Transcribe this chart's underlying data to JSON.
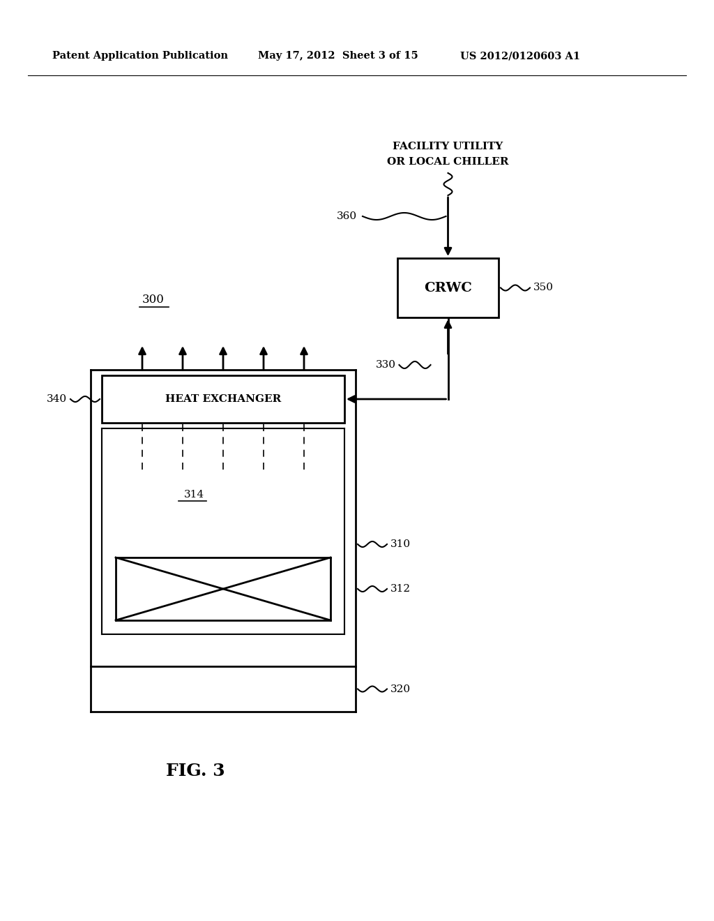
{
  "bg_color": "#ffffff",
  "header_left": "Patent Application Publication",
  "header_mid": "May 17, 2012  Sheet 3 of 15",
  "header_right": "US 2012/0120603 A1",
  "fig_label": "FIG. 3",
  "label_300": "300",
  "label_310": "310",
  "label_312": "312",
  "label_314": "314",
  "label_320": "320",
  "label_330": "330",
  "label_340": "340",
  "label_350": "350",
  "label_360": "360",
  "crwc_text": "CRWC",
  "heat_exchanger_text": "HEAT EXCHANGER",
  "facility_text1": "FACILITY UTILITY",
  "facility_text2": "OR LOCAL CHILLER"
}
